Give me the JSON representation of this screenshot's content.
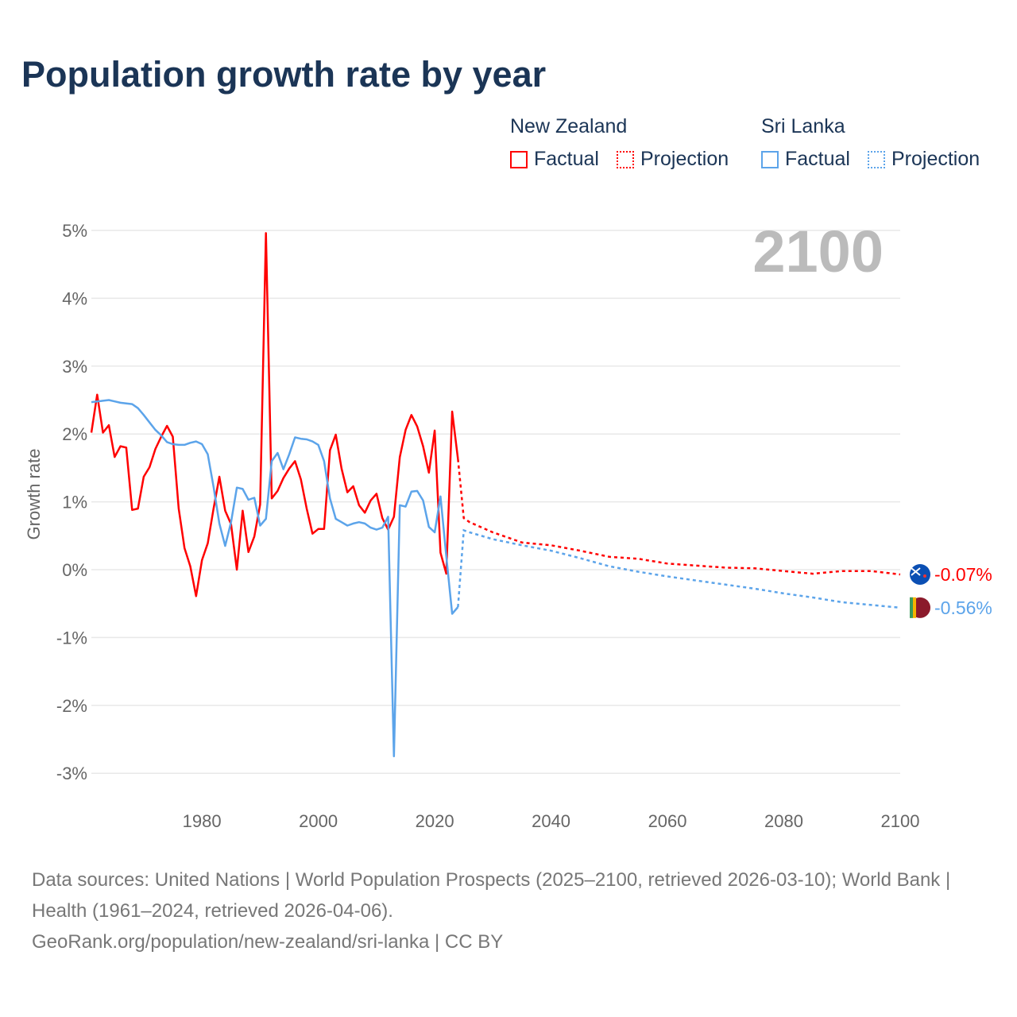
{
  "chart_data": {
    "type": "line",
    "title": "Population growth rate by year",
    "ylabel": "Growth rate",
    "xlabel": "",
    "xlim": [
      1961,
      2100
    ],
    "ylim": [
      -3,
      5
    ],
    "xticks": [
      "1980",
      "2000",
      "2020",
      "2040",
      "2060",
      "2080",
      "2100"
    ],
    "yticks": [
      "5%",
      "4%",
      "3%",
      "2%",
      "1%",
      "0%",
      "-1%",
      "-2%",
      "-3%"
    ],
    "year_label": "2100",
    "legend": {
      "groups": [
        {
          "name": "New Zealand",
          "factual": "Factual",
          "projection": "Projection"
        },
        {
          "name": "Sri Lanka",
          "factual": "Factual",
          "projection": "Projection"
        }
      ]
    },
    "series": [
      {
        "name": "New Zealand",
        "color": "#ff0000",
        "end_label": "-0.07%",
        "factual": {
          "x": [
            1961,
            1962,
            1963,
            1964,
            1965,
            1966,
            1967,
            1968,
            1969,
            1970,
            1971,
            1972,
            1973,
            1974,
            1975,
            1976,
            1977,
            1978,
            1979,
            1980,
            1981,
            1982,
            1983,
            1984,
            1985,
            1986,
            1987,
            1988,
            1989,
            1990,
            1991,
            1992,
            1993,
            1994,
            1995,
            1996,
            1997,
            1998,
            1999,
            2000,
            2001,
            2002,
            2003,
            2004,
            2005,
            2006,
            2007,
            2008,
            2009,
            2010,
            2011,
            2012,
            2013,
            2014,
            2015,
            2016,
            2017,
            2018,
            2019,
            2020,
            2021,
            2022,
            2023,
            2024
          ],
          "y": [
            2.02,
            2.58,
            2.02,
            2.13,
            1.66,
            1.82,
            1.8,
            0.88,
            0.9,
            1.37,
            1.51,
            1.78,
            1.96,
            2.12,
            1.96,
            0.9,
            0.32,
            0.05,
            -0.39,
            0.14,
            0.39,
            0.9,
            1.37,
            0.87,
            0.67,
            0.0,
            0.87,
            0.26,
            0.49,
            0.96,
            4.96,
            1.05,
            1.16,
            1.35,
            1.49,
            1.6,
            1.33,
            0.9,
            0.53,
            0.6,
            0.6,
            1.76,
            1.99,
            1.49,
            1.14,
            1.23,
            0.95,
            0.84,
            1.02,
            1.12,
            0.76,
            0.59,
            0.78,
            1.66,
            2.06,
            2.28,
            2.11,
            1.82,
            1.43,
            2.05,
            0.25,
            -0.06,
            2.33,
            1.63
          ]
        },
        "projection": {
          "x": [
            2024,
            2025,
            2026,
            2030,
            2035,
            2040,
            2045,
            2050,
            2055,
            2060,
            2065,
            2070,
            2075,
            2080,
            2085,
            2090,
            2095,
            2100
          ],
          "y": [
            1.63,
            0.76,
            0.7,
            0.55,
            0.4,
            0.36,
            0.28,
            0.19,
            0.16,
            0.09,
            0.06,
            0.03,
            0.02,
            -0.02,
            -0.06,
            -0.02,
            -0.02,
            -0.07
          ]
        }
      },
      {
        "name": "Sri Lanka",
        "color": "#5ca4ea",
        "end_label": "-0.56%",
        "factual": {
          "x": [
            1961,
            1962,
            1963,
            1964,
            1965,
            1966,
            1967,
            1968,
            1969,
            1970,
            1971,
            1972,
            1973,
            1974,
            1975,
            1976,
            1977,
            1978,
            1979,
            1980,
            1981,
            1982,
            1983,
            1984,
            1985,
            1986,
            1987,
            1988,
            1989,
            1990,
            1991,
            1992,
            1993,
            1994,
            1995,
            1996,
            1997,
            1998,
            1999,
            2000,
            2001,
            2002,
            2003,
            2004,
            2005,
            2006,
            2007,
            2008,
            2009,
            2010,
            2011,
            2012,
            2013,
            2014,
            2015,
            2016,
            2017,
            2018,
            2019,
            2020,
            2021,
            2022,
            2023,
            2024
          ],
          "y": [
            2.47,
            2.48,
            2.49,
            2.5,
            2.48,
            2.46,
            2.45,
            2.44,
            2.38,
            2.28,
            2.17,
            2.06,
            1.98,
            1.88,
            1.85,
            1.84,
            1.84,
            1.87,
            1.89,
            1.85,
            1.7,
            1.22,
            0.68,
            0.35,
            0.7,
            1.21,
            1.19,
            1.03,
            1.06,
            0.65,
            0.75,
            1.6,
            1.72,
            1.48,
            1.7,
            1.95,
            1.93,
            1.92,
            1.89,
            1.84,
            1.6,
            1.05,
            0.75,
            0.7,
            0.65,
            0.68,
            0.7,
            0.68,
            0.62,
            0.59,
            0.62,
            0.78,
            -2.75,
            0.95,
            0.93,
            1.15,
            1.16,
            1.02,
            0.63,
            0.55,
            1.08,
            0.2,
            -0.65,
            -0.55
          ]
        },
        "projection": {
          "x": [
            2024,
            2025,
            2026,
            2030,
            2035,
            2040,
            2045,
            2050,
            2055,
            2060,
            2065,
            2070,
            2075,
            2080,
            2085,
            2090,
            2095,
            2100
          ],
          "y": [
            -0.55,
            0.58,
            0.55,
            0.45,
            0.36,
            0.28,
            0.17,
            0.05,
            -0.03,
            -0.1,
            -0.16,
            -0.22,
            -0.28,
            -0.35,
            -0.41,
            -0.48,
            -0.52,
            -0.56
          ]
        }
      }
    ]
  },
  "footer": {
    "sources": "Data sources: United Nations | World Population Prospects (2025–2100, retrieved 2026-03-10); World Bank | Health (1961–2024, retrieved 2026-04-06).",
    "credit": "GeoRank.org/population/new-zealand/sri-lanka | CC BY"
  }
}
